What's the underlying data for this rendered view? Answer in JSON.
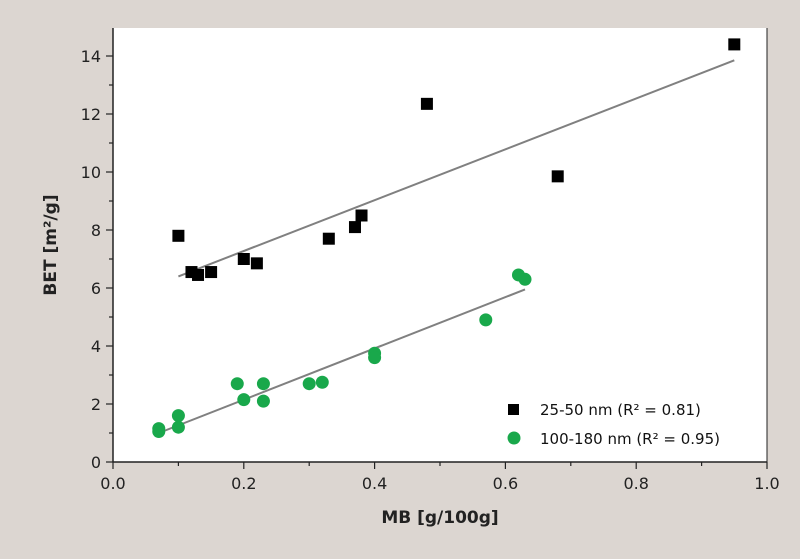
{
  "chart_data": {
    "type": "scatter",
    "title": "",
    "xlabel": "MB [g/100g]",
    "ylabel": "BET [m²/g]",
    "xlim": [
      0.0,
      1.0
    ],
    "ylim": [
      0,
      14.6
    ],
    "xticks": [
      "0.0",
      "0.2",
      "0.4",
      "0.6",
      "0.8",
      "1.0"
    ],
    "yticks": [
      "0",
      "2",
      "4",
      "6",
      "8",
      "10",
      "12",
      "14"
    ],
    "grid": false,
    "legend_position": "bottom-right",
    "series": [
      {
        "name": "25-50 nm (R² = 0.81)",
        "marker": "square",
        "color": "#000000",
        "x": [
          0.1,
          0.12,
          0.13,
          0.15,
          0.2,
          0.22,
          0.33,
          0.37,
          0.38,
          0.48,
          0.68,
          0.95
        ],
        "y": [
          7.8,
          6.55,
          6.45,
          6.55,
          7.0,
          6.85,
          7.7,
          8.1,
          8.5,
          12.35,
          9.85,
          14.4
        ],
        "fit": {
          "x": [
            0.1,
            0.95
          ],
          "y": [
            6.4,
            13.85
          ],
          "color": "#808080"
        }
      },
      {
        "name": "100-180 nm (R² = 0.95)",
        "marker": "circle",
        "color": "#19a84b",
        "x": [
          0.07,
          0.07,
          0.1,
          0.1,
          0.19,
          0.2,
          0.23,
          0.23,
          0.3,
          0.32,
          0.4,
          0.4,
          0.57,
          0.62,
          0.63
        ],
        "y": [
          1.05,
          1.15,
          1.6,
          1.2,
          2.7,
          2.15,
          2.7,
          2.1,
          2.7,
          2.75,
          3.75,
          3.6,
          4.9,
          6.45,
          6.3
        ],
        "fit": {
          "x": [
            0.07,
            0.63
          ],
          "y": [
            1.0,
            5.95
          ],
          "color": "#808080"
        }
      }
    ]
  }
}
